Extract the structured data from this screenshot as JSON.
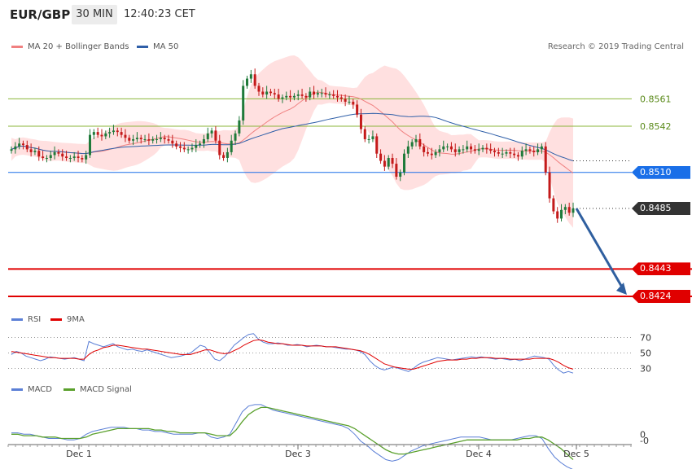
{
  "header": {
    "symbol": "EUR/GBP",
    "timeframe": "30 MIN",
    "time": "12:40:23 CET"
  },
  "legends": {
    "bb": "MA 20 + Bollinger Bands",
    "ma50": "MA 50",
    "rsi": "RSI",
    "rsi_ma": "9MA",
    "macd": "MACD",
    "macd_signal": "MACD Signal"
  },
  "credit": "Research © 2019 Trading Central",
  "colors": {
    "ma20": "#f08080",
    "band": "#ffd6d6",
    "ma50": "#2f5fa8",
    "up": "#1f7a3a",
    "down": "#c41a1a",
    "resistance": "#8bb53a",
    "support": "#e00000",
    "pivot": "#1a6fe8",
    "last": "#333333",
    "arrow": "#2f5f9f",
    "rsi": "#5b7fd6",
    "rsi_ma": "#e00000",
    "macd": "#5b7fd6",
    "macd_signal": "#5aa02c"
  },
  "chart_data": {
    "type": "candlestick",
    "x_labels": [
      "Dec 1",
      "Dec 3",
      "Dec 4",
      "Dec 5"
    ],
    "price_ylim": [
      0.8415,
      0.859
    ],
    "levels": [
      {
        "name": "resistance-2",
        "value": 0.8561,
        "label": "0.8561",
        "kind": "resistance"
      },
      {
        "name": "resistance-1",
        "value": 0.8542,
        "label": "0.8542",
        "kind": "resistance"
      },
      {
        "name": "pivot",
        "value": 0.851,
        "label": "0.8510",
        "kind": "pivot"
      },
      {
        "name": "last-price",
        "value": 0.8485,
        "label": "0.8485",
        "kind": "last"
      },
      {
        "name": "support-1",
        "value": 0.8443,
        "label": "0.8443",
        "kind": "support"
      },
      {
        "name": "support-2",
        "value": 0.8424,
        "label": "0.8424",
        "kind": "support"
      }
    ],
    "close": [
      0.8526,
      0.8528,
      0.853,
      0.8529,
      0.8526,
      0.8524,
      0.8525,
      0.8521,
      0.852,
      0.852,
      0.8522,
      0.8524,
      0.8523,
      0.8521,
      0.852,
      0.852,
      0.8521,
      0.852,
      0.8519,
      0.8522,
      0.8536,
      0.8538,
      0.8536,
      0.8535,
      0.8537,
      0.8538,
      0.8539,
      0.8538,
      0.8536,
      0.8534,
      0.8532,
      0.8533,
      0.8534,
      0.8533,
      0.8533,
      0.8532,
      0.8533,
      0.8533,
      0.8534,
      0.8533,
      0.8532,
      0.853,
      0.8528,
      0.8527,
      0.8526,
      0.8526,
      0.8527,
      0.8529,
      0.853,
      0.8533,
      0.8537,
      0.8539,
      0.8532,
      0.8522,
      0.852,
      0.8524,
      0.8532,
      0.8537,
      0.8546,
      0.857,
      0.8575,
      0.8578,
      0.857,
      0.8566,
      0.8564,
      0.8566,
      0.8565,
      0.8564,
      0.8561,
      0.8562,
      0.8563,
      0.8562,
      0.8563,
      0.8564,
      0.8563,
      0.8562,
      0.8566,
      0.8564,
      0.8565,
      0.8565,
      0.8564,
      0.8564,
      0.8563,
      0.8562,
      0.8561,
      0.8559,
      0.8559,
      0.8557,
      0.855,
      0.854,
      0.8533,
      0.8533,
      0.8535,
      0.8523,
      0.8518,
      0.8514,
      0.852,
      0.8516,
      0.8507,
      0.851,
      0.8523,
      0.8528,
      0.8531,
      0.8533,
      0.8528,
      0.8524,
      0.8523,
      0.8522,
      0.8524,
      0.8526,
      0.8528,
      0.8528,
      0.8526,
      0.8524,
      0.8526,
      0.8526,
      0.8528,
      0.8526,
      0.8525,
      0.8526,
      0.8527,
      0.8526,
      0.8525,
      0.8524,
      0.8523,
      0.8523,
      0.8524,
      0.8523,
      0.8522,
      0.8521,
      0.8525,
      0.8526,
      0.8525,
      0.8524,
      0.8526,
      0.8528,
      0.851,
      0.8492,
      0.8483,
      0.8478,
      0.8484,
      0.8486,
      0.8482,
      0.8485
    ],
    "rsi_ylim": [
      20,
      80
    ],
    "rsi_ticks": [
      30,
      50,
      70
    ],
    "rsi": [
      48,
      52,
      50,
      46,
      44,
      42,
      40,
      42,
      45,
      44,
      43,
      42,
      43,
      44,
      42,
      40,
      65,
      62,
      60,
      58,
      60,
      62,
      58,
      56,
      54,
      55,
      53,
      52,
      54,
      52,
      50,
      48,
      46,
      44,
      45,
      46,
      48,
      50,
      55,
      60,
      58,
      50,
      42,
      40,
      45,
      52,
      60,
      65,
      70,
      74,
      75,
      68,
      64,
      62,
      62,
      63,
      62,
      60,
      60,
      61,
      60,
      58,
      59,
      60,
      59,
      58,
      58,
      57,
      56,
      55,
      55,
      54,
      52,
      48,
      40,
      34,
      30,
      28,
      30,
      32,
      30,
      28,
      26,
      30,
      35,
      38,
      40,
      42,
      44,
      43,
      42,
      41,
      42,
      43,
      44,
      45,
      44,
      45,
      44,
      43,
      42,
      43,
      42,
      41,
      42,
      40,
      42,
      44,
      46,
      45,
      44,
      42,
      34,
      28,
      24,
      26,
      24
    ],
    "rsi_ma": [
      52,
      51,
      50,
      49,
      48,
      47,
      46,
      45,
      44,
      44,
      43,
      43,
      43,
      43,
      42,
      42,
      48,
      52,
      54,
      57,
      58,
      60,
      60,
      59,
      58,
      57,
      56,
      55,
      55,
      54,
      53,
      52,
      51,
      50,
      49,
      48,
      48,
      48,
      50,
      52,
      54,
      54,
      52,
      50,
      49,
      50,
      53,
      56,
      60,
      63,
      66,
      67,
      66,
      64,
      63,
      62,
      62,
      61,
      60,
      60,
      60,
      59,
      59,
      59,
      59,
      58,
      58,
      58,
      57,
      56,
      55,
      54,
      53,
      51,
      48,
      44,
      40,
      36,
      34,
      32,
      31,
      30,
      29,
      29,
      31,
      33,
      35,
      37,
      39,
      40,
      41,
      41,
      41,
      42,
      42,
      43,
      43,
      44,
      44,
      44,
      43,
      43,
      43,
      42,
      42,
      42,
      42,
      42,
      43,
      43,
      43,
      43,
      41,
      38,
      34,
      31,
      29
    ],
    "macd_ylim": [
      -0.0005,
      0.0025
    ],
    "macd_ticks": [
      0,
      0
    ],
    "macd": [
      0.0001,
      0.0001,
      0.0,
      0.0,
      -0.0001,
      -0.0002,
      -0.0003,
      -0.0003,
      -0.0003,
      -0.0004,
      -0.0004,
      -0.0003,
      0.0,
      0.0002,
      0.0003,
      0.0004,
      0.0005,
      0.0005,
      0.0005,
      0.0004,
      0.0004,
      0.0003,
      0.0003,
      0.0002,
      0.0002,
      0.0001,
      0.0,
      0.0,
      0.0,
      0.0,
      0.0001,
      0.0001,
      -0.0002,
      -0.0003,
      -0.0002,
      0.0,
      0.0008,
      0.0016,
      0.002,
      0.0021,
      0.0021,
      0.0019,
      0.0017,
      0.0016,
      0.0015,
      0.0014,
      0.0013,
      0.0012,
      0.0011,
      0.001,
      0.0009,
      0.0008,
      0.0007,
      0.0006,
      0.0004,
      0.0,
      -0.0005,
      -0.0008,
      -0.0012,
      -0.0015,
      -0.0018,
      -0.0019,
      -0.0018,
      -0.0015,
      -0.0012,
      -0.001,
      -0.0008,
      -0.0007,
      -0.0006,
      -0.0005,
      -0.0004,
      -0.0003,
      -0.0002,
      -0.0002,
      -0.0002,
      -0.0002,
      -0.0003,
      -0.0004,
      -0.0004,
      -0.0004,
      -0.0004,
      -0.0003,
      -0.0002,
      -0.0001,
      -0.0001,
      -0.0003,
      -0.001,
      -0.0016,
      -0.002,
      -0.0023,
      -0.0025
    ],
    "macd_signal": [
      0.0,
      0.0,
      -0.0001,
      -0.0001,
      -0.0001,
      -0.0002,
      -0.0002,
      -0.0002,
      -0.0003,
      -0.0003,
      -0.0003,
      -0.0003,
      -0.0002,
      0.0,
      0.0001,
      0.0002,
      0.0003,
      0.0004,
      0.0004,
      0.0004,
      0.0004,
      0.0004,
      0.0004,
      0.0003,
      0.0003,
      0.0002,
      0.0002,
      0.0001,
      0.0001,
      0.0001,
      0.0001,
      0.0001,
      0.0,
      -0.0001,
      -0.0001,
      -0.0001,
      0.0003,
      0.0009,
      0.0014,
      0.0017,
      0.0019,
      0.0019,
      0.0018,
      0.0017,
      0.0016,
      0.0015,
      0.0014,
      0.0013,
      0.0012,
      0.0011,
      0.001,
      0.0009,
      0.0008,
      0.0007,
      0.0006,
      0.0004,
      0.0001,
      -0.0002,
      -0.0005,
      -0.0008,
      -0.0011,
      -0.0013,
      -0.0014,
      -0.0014,
      -0.0013,
      -0.0012,
      -0.0011,
      -0.001,
      -0.0009,
      -0.0008,
      -0.0007,
      -0.0006,
      -0.0005,
      -0.0004,
      -0.0004,
      -0.0004,
      -0.0004,
      -0.0004,
      -0.0004,
      -0.0004,
      -0.0004,
      -0.0004,
      -0.0003,
      -0.0003,
      -0.0002,
      -0.0002,
      -0.0004,
      -0.0007,
      -0.001,
      -0.0014,
      -0.0018
    ]
  }
}
